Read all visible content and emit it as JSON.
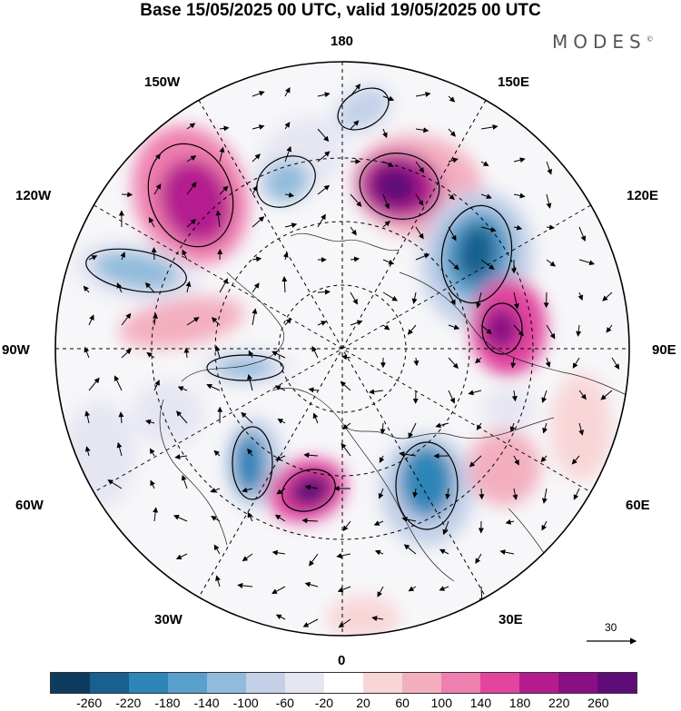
{
  "title": "Base 15/05/2025 00 UTC, valid 19/05/2025 00 UTC",
  "brand": "MODES",
  "brand_mark": "©",
  "longitude_labels": {
    "l180": "180",
    "l150w": "150W",
    "l150e": "150E",
    "l120w": "120W",
    "l120e": "120E",
    "l90w": "90W",
    "l90e": "90E",
    "l60w": "60W",
    "l60e": "60E",
    "l30w": "30W",
    "l30e": "30E",
    "l0": "0"
  },
  "reference_vector": {
    "label": "30"
  },
  "colorbar": {
    "colors": [
      "#0d3c5e",
      "#17608f",
      "#2f85b8",
      "#5aa0cc",
      "#91bbdc",
      "#c3d0e8",
      "#e6e6f2",
      "#ffffff",
      "#f8d6d8",
      "#f3afc0",
      "#ef7fae",
      "#e2449e",
      "#b41b8f",
      "#8a0f85",
      "#5e0d78"
    ],
    "ticks": [
      "-260",
      "-220",
      "-180",
      "-140",
      "-100",
      "-60",
      "-20",
      "20",
      "60",
      "100",
      "140",
      "180",
      "220",
      "260"
    ]
  },
  "map_data": {
    "projection": "north-polar-stereographic",
    "field": "shaded anomaly with contours and wind vectors",
    "anomaly_centers": [
      {
        "sign": "positive",
        "strength": 220,
        "lon_sector": "150W-135W"
      },
      {
        "sign": "negative",
        "strength": -140,
        "lon_sector": "165W"
      },
      {
        "sign": "negative",
        "strength": -120,
        "lon_sector": "170E"
      },
      {
        "sign": "positive",
        "strength": 260,
        "lon_sector": "150E"
      },
      {
        "sign": "negative",
        "strength": -240,
        "lon_sector": "115E"
      },
      {
        "sign": "positive",
        "strength": 240,
        "lon_sector": "85E"
      },
      {
        "sign": "negative",
        "strength": -180,
        "lon_sector": "120W"
      },
      {
        "sign": "negative",
        "strength": -220,
        "lon_sector": "40W"
      },
      {
        "sign": "positive",
        "strength": 260,
        "lon_sector": "10W"
      },
      {
        "sign": "negative",
        "strength": -200,
        "lon_sector": "25E"
      },
      {
        "sign": "negative",
        "strength": -140,
        "lon_sector": "80W"
      }
    ]
  }
}
